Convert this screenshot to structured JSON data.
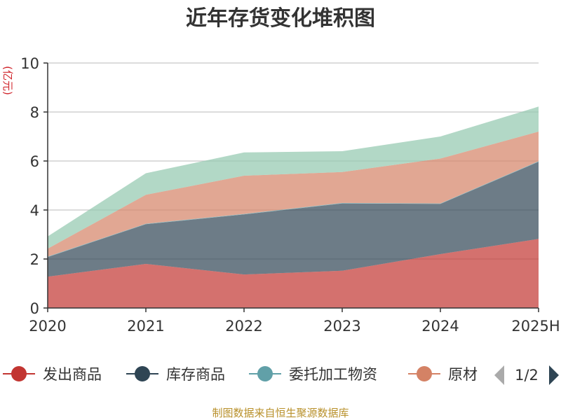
{
  "chart_data": {
    "type": "area",
    "stacked": true,
    "title": "近年存货变化堆积图",
    "y_unit": "(亿元)",
    "categories": [
      "2020",
      "2021",
      "2022",
      "2023",
      "2024",
      "2025H"
    ],
    "ylim": [
      0,
      10
    ],
    "yticks": [
      "0",
      "2",
      "4",
      "6",
      "8",
      "10"
    ],
    "grid": true,
    "legend_position": "bottom",
    "series": [
      {
        "name": "发出商品",
        "color": "#c23531",
        "values": [
          1.28,
          1.8,
          1.37,
          1.52,
          2.2,
          2.82
        ]
      },
      {
        "name": "库存商品",
        "color": "#2f4554",
        "values": [
          0.8,
          1.62,
          2.45,
          2.75,
          2.05,
          3.15
        ]
      },
      {
        "name": "委托加工物资",
        "color": "#61a0a8",
        "values": [
          0.02,
          0.02,
          0.02,
          0.02,
          0.02,
          0.02
        ]
      },
      {
        "name": "原材料",
        "color": "#d48265",
        "values": [
          0.32,
          1.18,
          1.56,
          1.26,
          1.83,
          1.21
        ]
      },
      {
        "name": "",
        "color": "#91c7ae",
        "values": [
          0.5,
          0.88,
          0.95,
          0.85,
          0.9,
          1.02
        ]
      }
    ]
  },
  "legend": {
    "items": [
      "发出商品",
      "库存商品",
      "委托加工物资",
      "原材"
    ],
    "page_indicator": "1/2"
  },
  "footer": "制图数据来自恒生聚源数据库"
}
